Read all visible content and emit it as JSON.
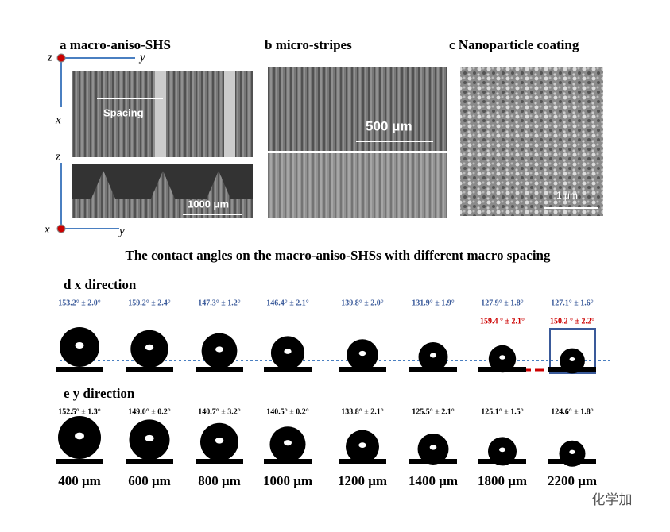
{
  "panels": {
    "a": {
      "title": "a macro-aniso-SHS",
      "axes_top": [
        "z",
        "y",
        "x"
      ],
      "axes_bottom": [
        "z",
        "x",
        "y"
      ],
      "spacing_label": "Spacing",
      "scale_bar": "1000 μm"
    },
    "b": {
      "title": "b micro-stripes",
      "scale_bar": "500 μm"
    },
    "c": {
      "title": "c Nanoparticle coating",
      "scale_bar": "1 μm"
    }
  },
  "heading": "The contact angles on the macro-aniso-SHSs with different macro spacing",
  "d": {
    "title": "d   x direction",
    "angles": [
      "153.2° ± 2.0°",
      "159.2° ± 2.4°",
      "147.3° ± 1.2°",
      "146.4° ± 2.1°",
      "139.8° ± 2.0°",
      "131.9° ± 1.9°",
      "127.9° ± 1.8°",
      "127.1° ± 1.6°"
    ],
    "red_angles": [
      "159.4 ° ± 2.1°",
      "150.2 ° ± 2.2°"
    ]
  },
  "e": {
    "title": "e   y direction",
    "angles": [
      "152.5° ± 1.3°",
      "149.0° ± 0.2°",
      "140.7° ± 3.2°",
      "140.5° ± 0.2°",
      "133.8° ± 2.1°",
      "125.5° ± 2.1°",
      "125.1° ± 1.5°",
      "124.6° ± 1.8°"
    ]
  },
  "spacings": [
    "400 μm",
    "600 μm",
    "800 μm",
    "1000 μm",
    "1200 μm",
    "1400 μm",
    "1800 μm",
    "2200 μm"
  ],
  "watermark": "化学加"
}
